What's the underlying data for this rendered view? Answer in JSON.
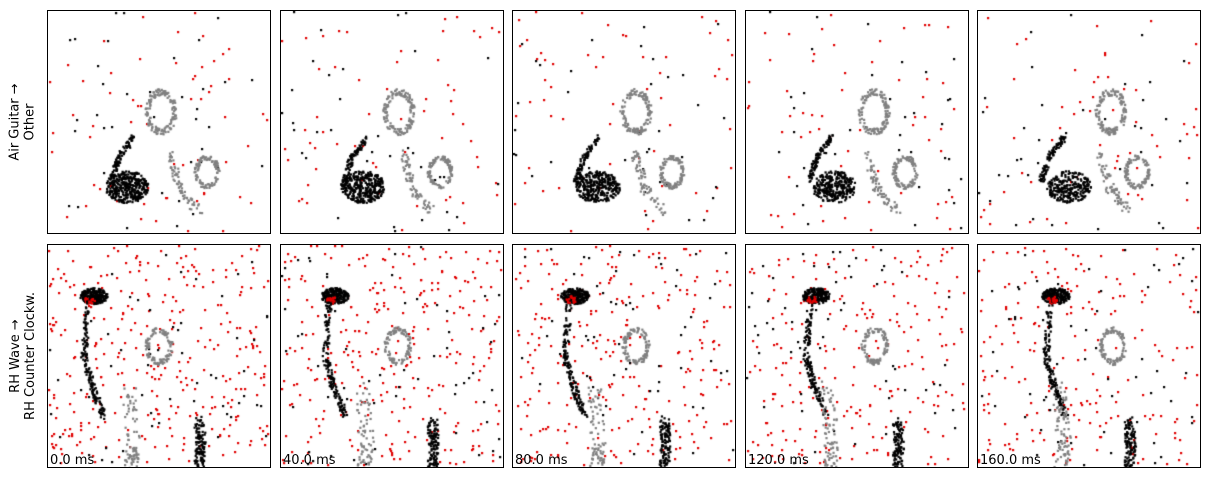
{
  "rows": [
    {
      "label_line1": "Air Guitar →",
      "label_line2": "Other"
    },
    {
      "label_line1": "RH Wave →",
      "label_line2": "RH Counter Clockw."
    }
  ],
  "time_labels": [
    "0.0 ms",
    "40.0 ms",
    "80.0 ms",
    "120.0 ms",
    "160.0 ms"
  ],
  "colors": {
    "positive_event": "#000000",
    "secondary_event": "#808080",
    "negative_event": "#e00000",
    "background": "#ffffff"
  }
}
